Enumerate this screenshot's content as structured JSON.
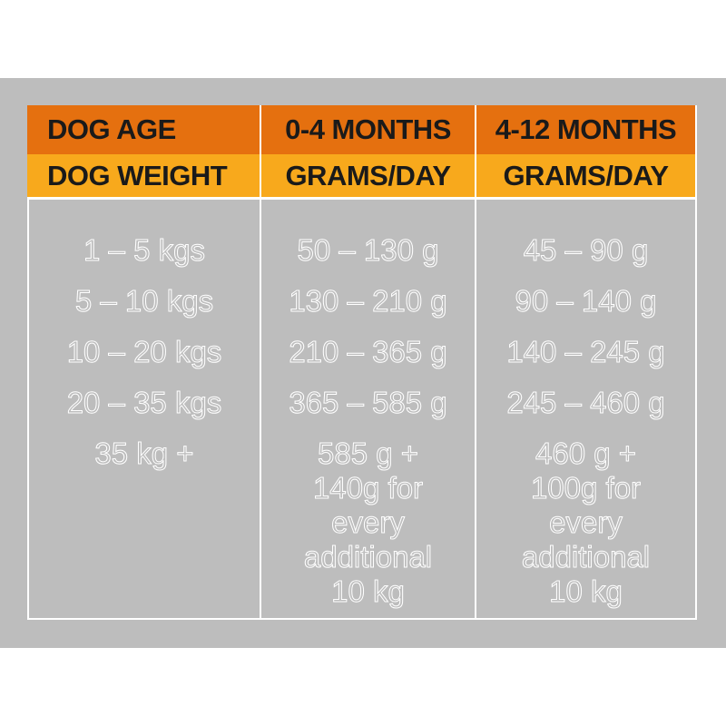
{
  "table": {
    "columns": [
      {
        "header_age": "DOG AGE",
        "header_weight": "DOG WEIGHT",
        "cells": [
          "1 – 5 kgs",
          "5 – 10 kgs",
          "10 – 20 kgs",
          "20 – 35 kgs",
          "35 kg +"
        ]
      },
      {
        "header_age": "0-4 MONTHS",
        "header_weight": "GRAMS/DAY",
        "cells": [
          "50 – 130 g",
          "130 – 210 g",
          "210 – 365 g",
          "365 – 585 g",
          "585 g +\n140g for\nevery\nadditional\n10 kg"
        ]
      },
      {
        "header_age": "4-12 MONTHS",
        "header_weight": "GRAMS/DAY",
        "cells": [
          "45 – 90 g",
          "90 – 140 g",
          "140 – 245 g",
          "245 – 460 g",
          "460 g +\n100g for\nevery\nadditional\n10 kg"
        ]
      }
    ]
  },
  "colors": {
    "header_age_bg": "#e5700f",
    "header_weight_bg": "#f8a91c",
    "panel_bg": "#bdbdbd",
    "text_outline": "#ffffff"
  }
}
